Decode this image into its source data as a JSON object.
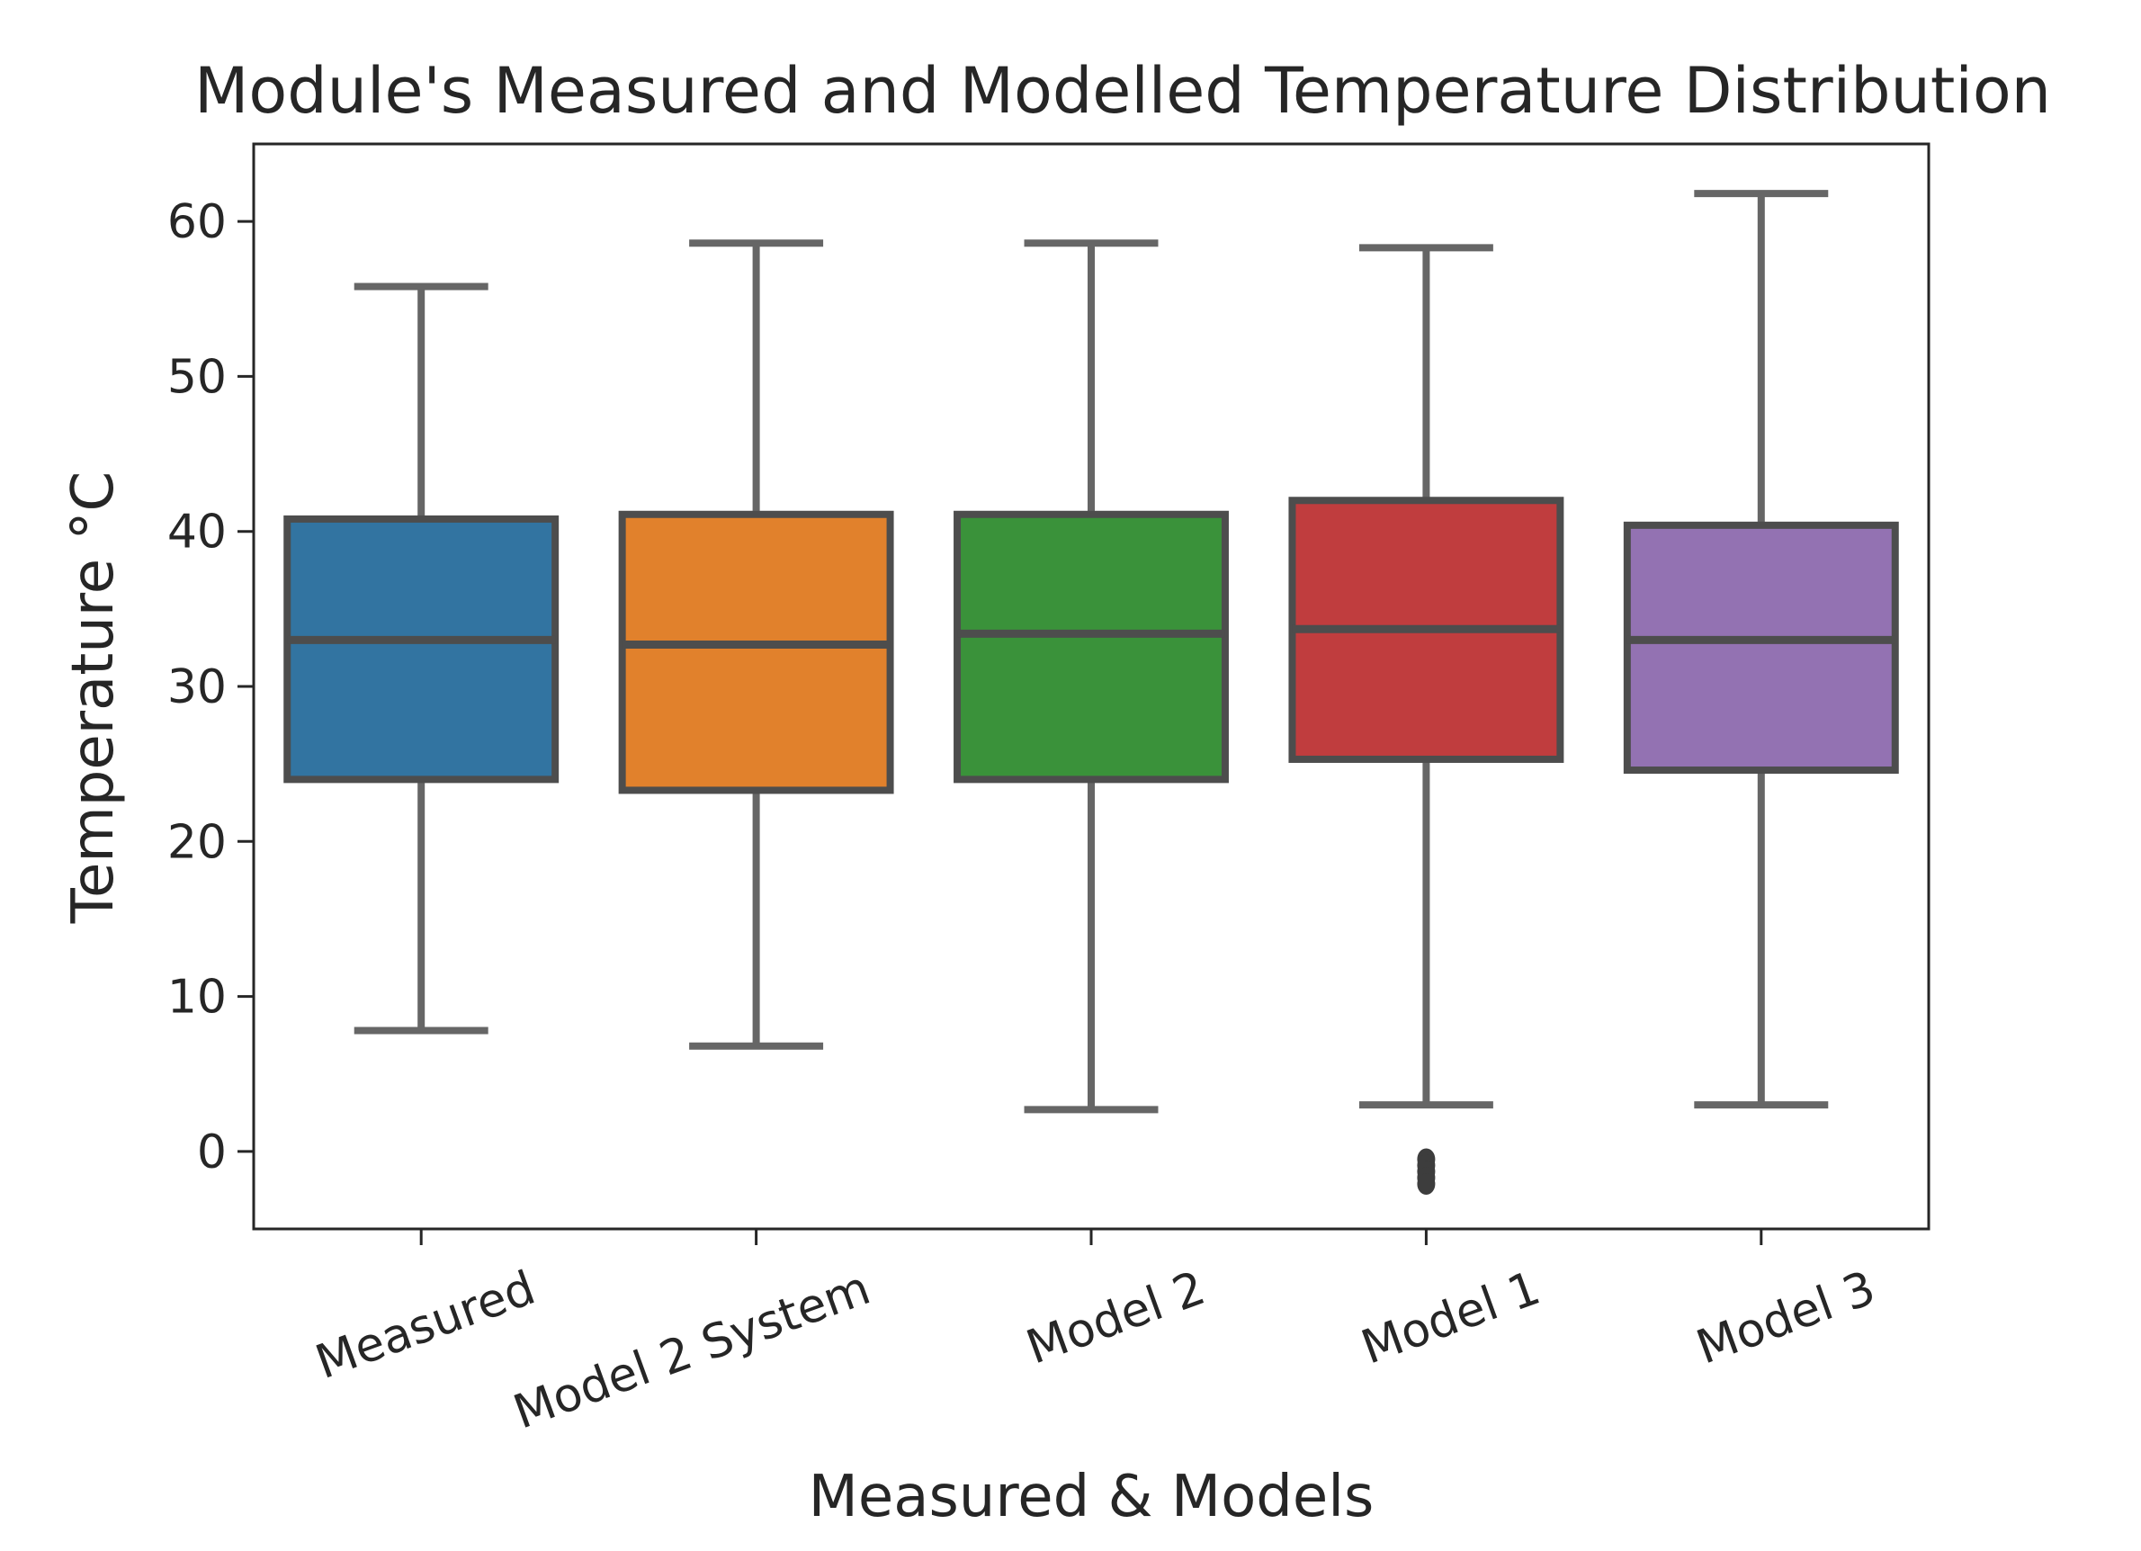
{
  "chart_data": {
    "type": "box",
    "title": "Module's Measured and Modelled Temperature Distribution",
    "xlabel": "Measured & Models",
    "ylabel": "Temperature °C",
    "ylim": [
      -5,
      65
    ],
    "yticks": [
      0,
      10,
      20,
      30,
      40,
      50,
      60
    ],
    "grid": false,
    "categories": [
      "Measured",
      "Model 2 System",
      "Model 2",
      "Model 1",
      "Model 3"
    ],
    "boxes": [
      {
        "name": "Measured",
        "color": "#3274a1",
        "whisker_low": 7.8,
        "q1": 24.0,
        "median": 33.0,
        "q3": 40.8,
        "whisker_high": 55.8,
        "outliers": []
      },
      {
        "name": "Model 2 System",
        "color": "#e1812c",
        "whisker_low": 6.8,
        "q1": 23.3,
        "median": 32.7,
        "q3": 41.1,
        "whisker_high": 58.6,
        "outliers": []
      },
      {
        "name": "Model 2",
        "color": "#3a923a",
        "whisker_low": 2.7,
        "q1": 24.0,
        "median": 33.4,
        "q3": 41.1,
        "whisker_high": 58.6,
        "outliers": []
      },
      {
        "name": "Model 1",
        "color": "#c03d3e",
        "whisker_low": 3.0,
        "q1": 25.3,
        "median": 33.7,
        "q3": 42.0,
        "whisker_high": 58.3,
        "outliers": [
          -0.5,
          -0.9,
          -1.3,
          -1.7,
          -2.1
        ]
      },
      {
        "name": "Model 3",
        "color": "#9372b2",
        "whisker_low": 3.0,
        "q1": 24.6,
        "median": 33.0,
        "q3": 40.4,
        "whisker_high": 61.8,
        "outliers": []
      }
    ]
  }
}
